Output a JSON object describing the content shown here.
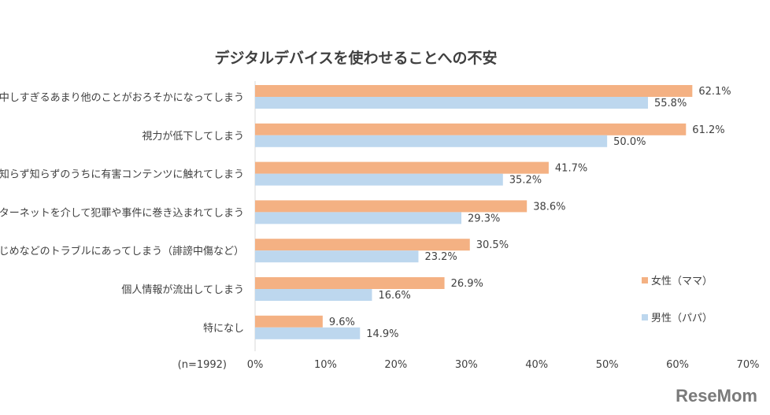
{
  "chart_data": {
    "type": "bar",
    "orientation": "horizontal",
    "title": "デジタルデバイスを使わせることへの不安",
    "categories": [
      "熱中しすぎるあまり他のことがおろそかになってしまう",
      "視力が低下してしまう",
      "知らず知らずのうちに有害コンテンツに触れてしまう",
      "インターネットを介して犯罪や事件に巻き込まれてしまう",
      "いじめなどのトラブルにあってしまう（誹謗中傷など）",
      "個人情報が流出してしまう",
      "特になし"
    ],
    "series": [
      {
        "name": "女性（ママ）",
        "color": "#f4b183",
        "values": [
          62.1,
          61.2,
          41.7,
          38.6,
          30.5,
          26.9,
          9.6
        ],
        "labels": [
          "62.1%",
          "61.2%",
          "41.7%",
          "38.6%",
          "30.5%",
          "26.9%",
          "9.6%"
        ]
      },
      {
        "name": "男性（パパ）",
        "color": "#bdd7ee",
        "values": [
          55.8,
          50.0,
          35.2,
          29.3,
          23.2,
          16.6,
          14.9
        ],
        "labels": [
          "55.8%",
          "50.0%",
          "35.2%",
          "29.3%",
          "23.2%",
          "16.6%",
          "14.9%"
        ]
      }
    ],
    "xlim": [
      0,
      70
    ],
    "xticks": [
      "0%",
      "10%",
      "20%",
      "30%",
      "40%",
      "50%",
      "60%",
      "70%"
    ],
    "grid": false,
    "legend": "right",
    "note": "(n=1992)"
  },
  "watermark": "ReseMom"
}
